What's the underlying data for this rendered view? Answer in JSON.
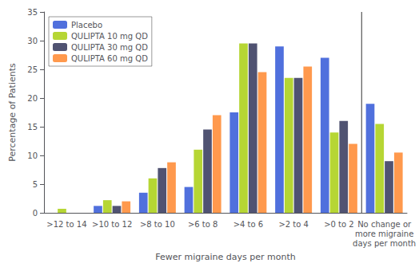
{
  "chart_data": {
    "type": "bar",
    "categories": [
      ">12 to 14",
      ">10 to 12",
      ">8 to 10",
      ">6 to 8",
      ">4 to 6",
      ">2 to 4",
      ">0 to 2",
      "No change or\nmore migraine\ndays per month"
    ],
    "series": [
      {
        "name": "Placebo",
        "values": [
          0.0,
          1.2,
          3.5,
          4.5,
          17.5,
          29.0,
          27.0,
          19.0
        ]
      },
      {
        "name": "QULIPTA 10 mg QD",
        "values": [
          0.7,
          2.2,
          6.0,
          11.0,
          29.5,
          23.5,
          14.0,
          15.5
        ]
      },
      {
        "name": "QULIPTA 30 mg QD",
        "values": [
          0.0,
          1.2,
          7.8,
          14.5,
          29.5,
          23.5,
          16.0,
          9.0
        ]
      },
      {
        "name": "QULIPTA 60 mg QD",
        "values": [
          0.0,
          2.0,
          8.8,
          17.0,
          24.5,
          25.5,
          12.0,
          10.5
        ]
      }
    ],
    "xlabel": "Fewer migraine days per month",
    "ylabel": "Percentage of Patients",
    "ylim": [
      0,
      35
    ],
    "yticks": [
      0,
      5,
      10,
      15,
      20,
      25,
      30,
      35
    ],
    "grid": false,
    "legend": "upper left"
  }
}
